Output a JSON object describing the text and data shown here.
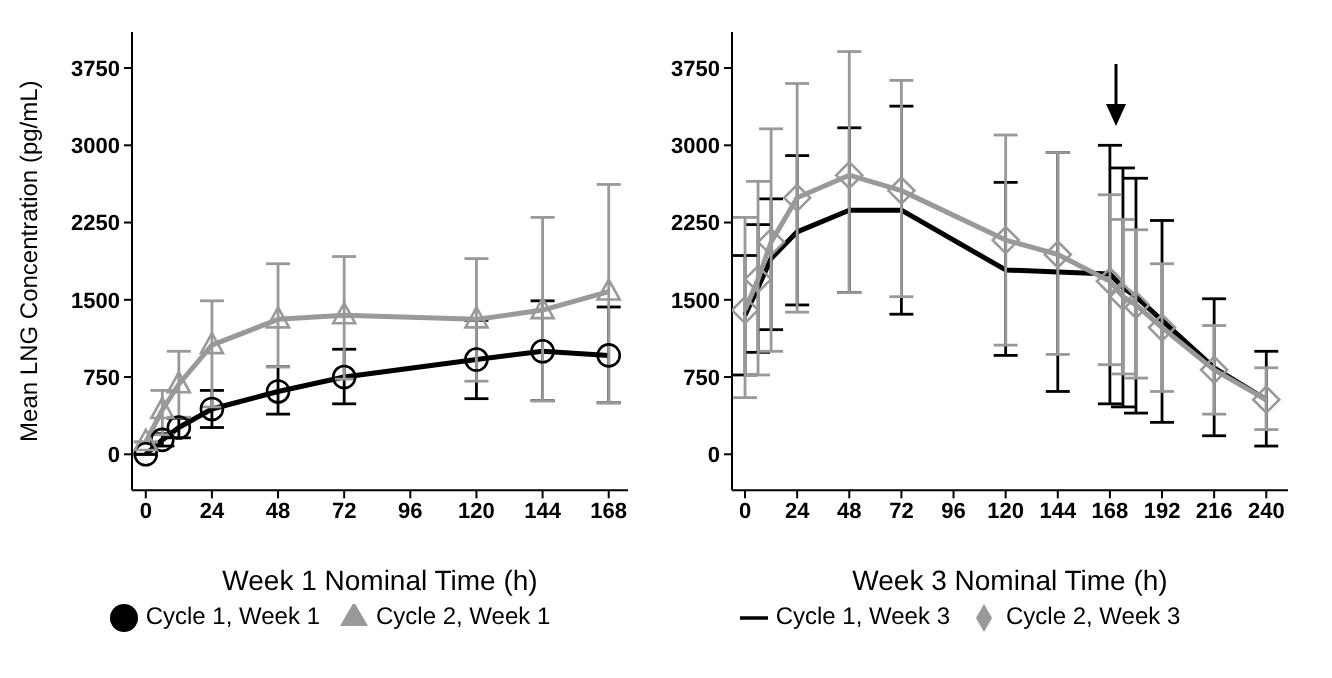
{
  "chart_data": [
    {
      "type": "line",
      "ylabel": "Mean LNG Concentration (pg/mL)",
      "xlabel": "Week 1 Nominal Time (h)",
      "x": [
        0,
        6,
        12,
        24,
        48,
        72,
        120,
        144,
        168
      ],
      "xlim": [
        -5,
        175
      ],
      "xticks": [
        0,
        24,
        48,
        72,
        96,
        120,
        144,
        168
      ],
      "ylim": [
        -350,
        4100
      ],
      "yticks": [
        0,
        750,
        1500,
        2250,
        3000,
        3750
      ],
      "grid": false,
      "legend": "bottom",
      "series": [
        {
          "name": "Cycle 1, Week 1",
          "color": "#000000",
          "marker": "circle",
          "values": [
            0,
            140,
            260,
            440,
            610,
            750,
            920,
            1000,
            960
          ],
          "errors": [
            null,
            [
              80,
              200
            ],
            [
              160,
              350
            ],
            [
              260,
              620
            ],
            [
              390,
              850
            ],
            [
              490,
              1020
            ],
            [
              540,
              1300
            ],
            [
              520,
              1490
            ],
            [
              500,
              1430
            ]
          ]
        },
        {
          "name": "Cycle 2, Week 1",
          "color": "#999999",
          "marker": "triangle",
          "values": [
            120,
            430,
            680,
            1060,
            1310,
            1350,
            1310,
            1400,
            1580
          ],
          "errors": [
            null,
            [
              190,
              620
            ],
            [
              360,
              1000
            ],
            [
              460,
              1490
            ],
            [
              850,
              1850
            ],
            [
              730,
              1920
            ],
            [
              710,
              1900
            ],
            [
              520,
              2300
            ],
            [
              500,
              2620
            ]
          ]
        }
      ]
    },
    {
      "type": "line",
      "xlabel": "Week 3 Nominal Time (h)",
      "x": [
        0,
        6,
        12,
        24,
        48,
        72,
        120,
        144,
        168,
        174,
        180,
        192,
        216,
        240
      ],
      "xlim": [
        -6,
        250
      ],
      "xticks": [
        0,
        24,
        48,
        72,
        96,
        120,
        144,
        168,
        192,
        216,
        240
      ],
      "ylim": [
        -350,
        4100
      ],
      "yticks": [
        0,
        750,
        1500,
        2250,
        3000,
        3750
      ],
      "grid": false,
      "legend": "bottom",
      "series": [
        {
          "name": "Cycle 1, Week 3",
          "color": "#000000",
          "marker": "none",
          "values": [
            1350,
            1620,
            1900,
            2160,
            2370,
            2370,
            1790,
            1770,
            1750,
            1620,
            1530,
            1300,
            840,
            530
          ],
          "errors": [
            [
              770,
              1930
            ],
            [
              990,
              2230
            ],
            [
              1210,
              2480
            ],
            [
              1450,
              2900
            ],
            [
              1570,
              3170
            ],
            [
              1360,
              3380
            ],
            [
              960,
              2640
            ],
            [
              610,
              2930
            ],
            [
              490,
              3000
            ],
            [
              460,
              2780
            ],
            [
              400,
              2680
            ],
            [
              310,
              2270
            ],
            [
              180,
              1510
            ],
            [
              80,
              1000
            ]
          ]
        },
        {
          "name": "Cycle 2, Week 3",
          "color": "#999999",
          "marker": "diamond",
          "values": [
            1400,
            1700,
            2060,
            2490,
            2710,
            2560,
            2080,
            1940,
            1680,
            1530,
            1450,
            1230,
            820,
            530
          ],
          "errors": [
            [
              550,
              2300
            ],
            [
              770,
              2650
            ],
            [
              1000,
              3160
            ],
            [
              1380,
              3600
            ],
            [
              1570,
              3910
            ],
            [
              1530,
              3630
            ],
            [
              1060,
              3100
            ],
            [
              970,
              2930
            ],
            [
              870,
              2520
            ],
            [
              780,
              2280
            ],
            [
              740,
              2180
            ],
            [
              610,
              1850
            ],
            [
              390,
              1250
            ],
            [
              240,
              840
            ]
          ]
        }
      ]
    }
  ]
}
